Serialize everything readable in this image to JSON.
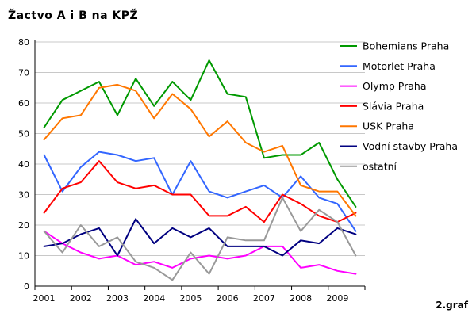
{
  "chart_data": {
    "type": "line",
    "title": "Žactvo A i B na KPŽ",
    "note": "2.graf",
    "x": [
      2001,
      2001.5,
      2002,
      2002.5,
      2003,
      2003.5,
      2004,
      2004.5,
      2005,
      2005.5,
      2006,
      2006.5,
      2007,
      2007.5,
      2008,
      2008.5,
      2009,
      2009.5
    ],
    "xticks": [
      "2001",
      "2002",
      "2003",
      "2004",
      "2005",
      "2006",
      "2007",
      "2008",
      "2009"
    ],
    "ylim": [
      0,
      80
    ],
    "yticks": [
      0,
      10,
      20,
      30,
      40,
      50,
      60,
      70,
      80
    ],
    "grid": "horizontal",
    "legend_position": "right",
    "series": [
      {
        "name": "Bohemians Praha",
        "color": "#009900",
        "values": [
          52,
          61,
          64,
          67,
          56,
          68,
          59,
          67,
          61,
          74,
          63,
          62,
          42,
          43,
          43,
          47,
          35,
          26
        ]
      },
      {
        "name": "Motorlet Praha",
        "color": "#3366ff",
        "values": [
          43,
          31,
          39,
          44,
          43,
          41,
          42,
          30,
          41,
          31,
          29,
          31,
          33,
          29,
          36,
          29,
          27,
          18
        ]
      },
      {
        "name": "Olymp Praha",
        "color": "#ff00ff",
        "values": [
          18,
          14,
          11,
          9,
          10,
          7,
          8,
          6,
          9,
          10,
          9,
          10,
          13,
          13,
          6,
          7,
          5,
          4
        ]
      },
      {
        "name": "Slávia Praha",
        "color": "#ff0000",
        "values": [
          24,
          32,
          34,
          41,
          34,
          32,
          33,
          30,
          30,
          23,
          23,
          26,
          21,
          30,
          27,
          23,
          21,
          24
        ]
      },
      {
        "name": "USK Praha",
        "color": "#ff7700",
        "values": [
          48,
          55,
          56,
          65,
          66,
          64,
          55,
          63,
          58,
          49,
          54,
          47,
          44,
          46,
          33,
          31,
          31,
          23
        ]
      },
      {
        "name": "Vodní stavby Praha",
        "color": "#000080",
        "values": [
          13,
          14,
          17,
          19,
          10,
          22,
          14,
          19,
          16,
          19,
          13,
          13,
          13,
          10,
          15,
          14,
          19,
          17
        ]
      },
      {
        "name": "ostatní",
        "color": "#999999",
        "values": [
          18,
          11,
          20,
          13,
          16,
          8,
          6,
          2,
          11,
          4,
          16,
          15,
          15,
          29,
          18,
          25,
          21,
          10
        ]
      }
    ]
  }
}
